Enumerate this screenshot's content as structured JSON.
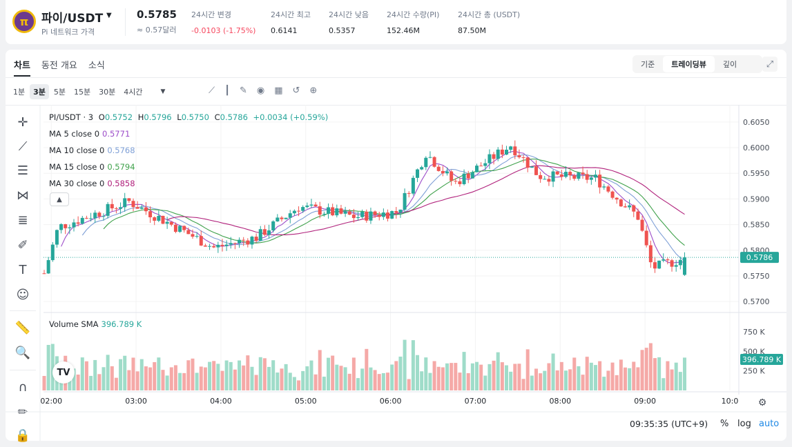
{
  "header": {
    "logo_text": "π",
    "pair": "파이/USDT",
    "pair_subtitle": "Pi 네트워크 가격",
    "last_price": "0.5785",
    "last_price_fiat": "≈ 0.57달러",
    "stats": [
      {
        "label": "24시간 변경",
        "value": "-0.0103 (-1.75%)",
        "tone": "neg"
      },
      {
        "label": "24시간 최고",
        "value": "0.6141",
        "tone": ""
      },
      {
        "label": "24시간 낮음",
        "value": "0.5357",
        "tone": ""
      },
      {
        "label": "24시간 수량(PI)",
        "value": "152.46M",
        "tone": ""
      },
      {
        "label": "24시간 총 (USDT)",
        "value": "87.50M",
        "tone": ""
      }
    ]
  },
  "tabs": {
    "chart": "차트",
    "overview": "동전 개요",
    "news": "소식"
  },
  "view": {
    "basic": "기준",
    "tradingview": "트레이딩뷰",
    "depth": "깊이"
  },
  "intervals": [
    "1분",
    "3분",
    "5분",
    "15분",
    "30분",
    "4시간"
  ],
  "active_interval": "3분",
  "legend": {
    "symbol": "PI/USDT · 3",
    "o_label": "O",
    "o": "0.5752",
    "h_label": "H",
    "h": "0.5796",
    "l_label": "L",
    "l": "0.5750",
    "c_label": "C",
    "c": "0.5786",
    "change": "+0.0034 (+0.59%)",
    "ma": [
      {
        "label": "MA 5 close 0",
        "value": "0.5771",
        "color": "#9c4cc9"
      },
      {
        "label": "MA 10 close 0",
        "value": "0.5768",
        "color": "#7e9fd6"
      },
      {
        "label": "MA 15 close 0",
        "value": "0.5794",
        "color": "#3fa14b"
      },
      {
        "label": "MA 30 close 0",
        "value": "0.5858",
        "color": "#b0207b"
      }
    ],
    "volume_label": "Volume SMA",
    "volume_value": "396.789 K"
  },
  "price_axis": {
    "ticks": [
      "0.6050",
      "0.6000",
      "0.5950",
      "0.5900",
      "0.5850",
      "0.5800",
      "0.5750",
      "0.5700"
    ],
    "current": "0.5786"
  },
  "volume_axis": {
    "ticks": [
      "750 K",
      "500 K",
      "250 K"
    ],
    "current": "396.789 K"
  },
  "time_axis": [
    "02:00",
    "03:00",
    "04:00",
    "05:00",
    "06:00",
    "07:00",
    "08:00",
    "09:00",
    "10:0"
  ],
  "footer": {
    "time": "09:35:35 (UTC+9)",
    "percent": "%",
    "log": "log",
    "auto": "auto"
  },
  "colors": {
    "up": "#26a69a",
    "down": "#ef5350",
    "accent": "#1e88e5"
  },
  "chart_data": {
    "type": "candlestick",
    "x_unit": "time (3-minute bars)",
    "y_range": [
      0.568,
      0.607
    ],
    "price_at_keypoints": [
      {
        "time": "01:55",
        "price": 0.5755
      },
      {
        "time": "02:05",
        "price": 0.5845
      },
      {
        "time": "02:55",
        "price": 0.5895
      },
      {
        "time": "03:25",
        "price": 0.585
      },
      {
        "time": "03:55",
        "price": 0.5805
      },
      {
        "time": "04:25",
        "price": 0.5825
      },
      {
        "time": "04:55",
        "price": 0.5885
      },
      {
        "time": "05:35",
        "price": 0.5865
      },
      {
        "time": "06:05",
        "price": 0.5875
      },
      {
        "time": "06:25",
        "price": 0.599
      },
      {
        "time": "06:45",
        "price": 0.593
      },
      {
        "time": "07:25",
        "price": 0.6005
      },
      {
        "time": "07:45",
        "price": 0.5945
      },
      {
        "time": "08:25",
        "price": 0.594
      },
      {
        "time": "08:55",
        "price": 0.5865
      },
      {
        "time": "09:05",
        "price": 0.5765
      },
      {
        "time": "09:30",
        "price": 0.5786
      }
    ]
  }
}
